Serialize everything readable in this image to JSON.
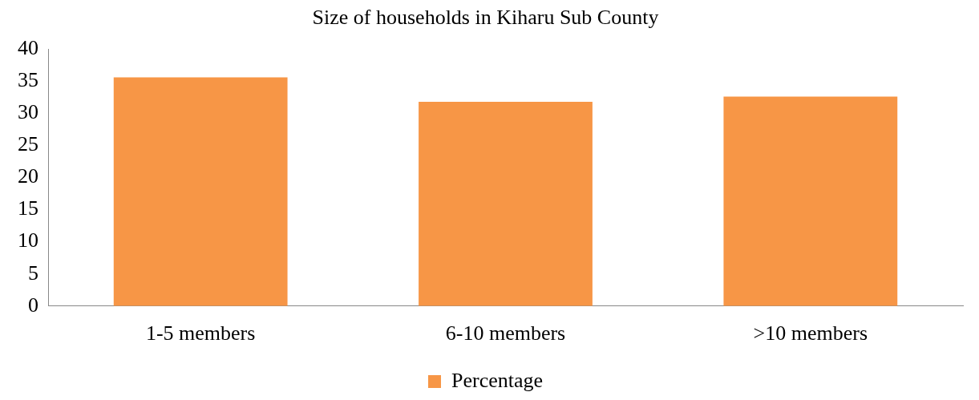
{
  "chart_data": {
    "type": "bar",
    "title": "Size of households in Kiharu Sub County",
    "categories": [
      "1-5 members",
      "6-10 members",
      ">10 members"
    ],
    "series": [
      {
        "name": "Percentage",
        "color": "#f79646",
        "values": [
          35.6,
          31.8,
          32.6
        ]
      }
    ],
    "ylim": [
      0,
      40
    ],
    "yticks": [
      0,
      5,
      10,
      15,
      20,
      25,
      30,
      35,
      40
    ],
    "grid": false,
    "legend": "bottom"
  }
}
